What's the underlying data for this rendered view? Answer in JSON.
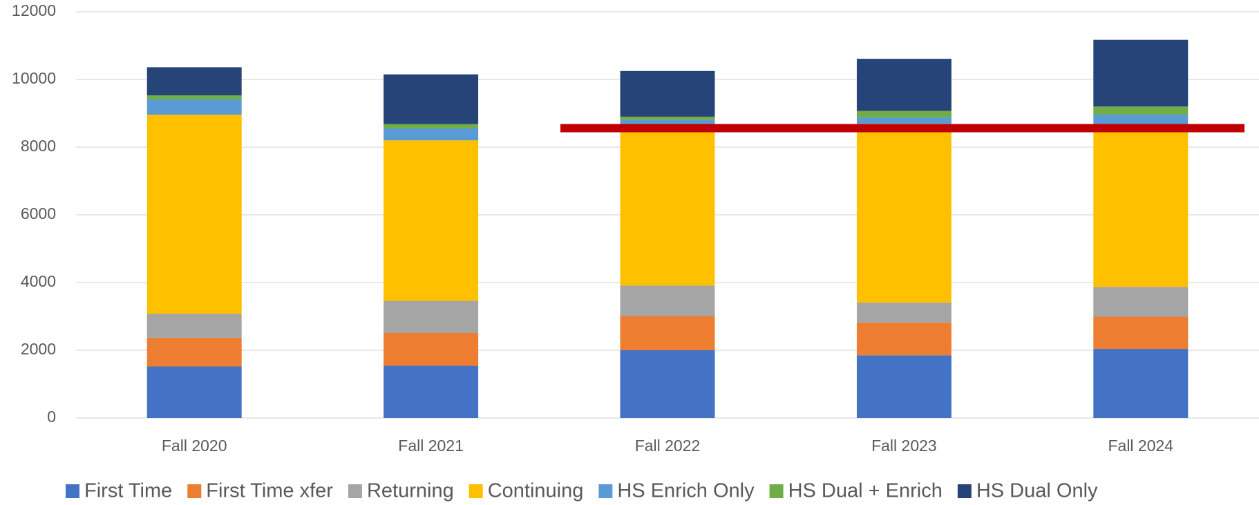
{
  "chart_data": {
    "type": "stacked_bar",
    "categories": [
      "Fall 2020",
      "Fall 2021",
      "Fall 2022",
      "Fall 2023",
      "Fall 2024"
    ],
    "series": [
      {
        "name": "First Time",
        "color": "#4472c4",
        "values": [
          1520,
          1540,
          2000,
          1850,
          2040
        ]
      },
      {
        "name": "First Time xfer",
        "color": "#ed7d31",
        "values": [
          850,
          970,
          1010,
          970,
          950
        ]
      },
      {
        "name": "Returning",
        "color": "#a5a5a5",
        "values": [
          710,
          950,
          900,
          590,
          880
        ]
      },
      {
        "name": "Continuing",
        "color": "#ffc000",
        "values": [
          5880,
          4740,
          4690,
          5280,
          4730
        ]
      },
      {
        "name": "HS Enrich Only",
        "color": "#5b9bd5",
        "values": [
          450,
          360,
          200,
          190,
          360
        ]
      },
      {
        "name": "HS Dual + Enrich",
        "color": "#70ad47",
        "values": [
          120,
          120,
          100,
          190,
          240
        ]
      },
      {
        "name": "HS Dual Only",
        "color": "#264478",
        "values": [
          830,
          1470,
          1350,
          1540,
          1970
        ]
      }
    ],
    "reference_line": {
      "value": 8560,
      "color": "#c00000"
    },
    "ylim": [
      0,
      12000
    ],
    "yticks": [
      0,
      2000,
      4000,
      6000,
      8000,
      10000,
      12000
    ],
    "grid": true,
    "legend": "bottom"
  }
}
